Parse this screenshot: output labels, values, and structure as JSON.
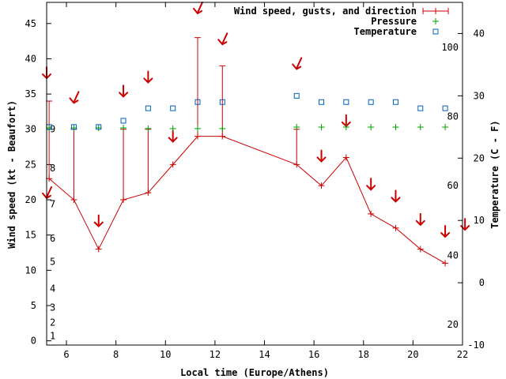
{
  "chart_data": {
    "type": "line",
    "xlabel": "Local time (Europe/Athens)",
    "ylabel": "Wind speed (kt - Beaufort)",
    "y2label": "Temperature (C - F)",
    "xlim": [
      5.2,
      22
    ],
    "ylim": [
      -0.6,
      48
    ],
    "y2lim": [
      -10,
      45
    ],
    "x_ticks": [
      6,
      8,
      10,
      12,
      14,
      16,
      18,
      20,
      22
    ],
    "y_ticks": [
      0,
      5,
      10,
      15,
      20,
      25,
      30,
      35,
      40,
      45
    ],
    "y2_ticks": [
      -10,
      0,
      10,
      20,
      30,
      40
    ],
    "beaufort_ticks": [
      {
        "label": "1",
        "y": 0.7
      },
      {
        "label": "2",
        "y": 2.6
      },
      {
        "label": "3",
        "y": 4.7
      },
      {
        "label": "4",
        "y": 7.4
      },
      {
        "label": "5",
        "y": 11.2
      },
      {
        "label": "6",
        "y": 14.5
      },
      {
        "label": "7",
        "y": 19.4
      },
      {
        "label": "8",
        "y": 24.5
      },
      {
        "label": "9",
        "y": 30.0
      }
    ],
    "fahrenheit_ticks": [
      {
        "label": "20",
        "c": -6.7
      },
      {
        "label": "40",
        "c": 4.4
      },
      {
        "label": "60",
        "c": 15.6
      },
      {
        "label": "80",
        "c": 26.7
      },
      {
        "label": "100",
        "c": 37.8
      }
    ],
    "series": [
      {
        "name": "Wind speed, gusts, and direction",
        "color": "#cc0000",
        "x": [
          5.3,
          6.3,
          7.3,
          8.3,
          9.3,
          10.3,
          11.3,
          12.3,
          15.3,
          16.3,
          17.3,
          18.3,
          19.3,
          20.3,
          21.3
        ],
        "speed": [
          23,
          20,
          13,
          20,
          21,
          25,
          29,
          29,
          25,
          22,
          26,
          18,
          16,
          13,
          11
        ],
        "gust": [
          34,
          30,
          null,
          30,
          30,
          null,
          43,
          39,
          30,
          null,
          null,
          null,
          null,
          null,
          null
        ],
        "arrows": [
          {
            "x": 5.2,
            "y": 20.8,
            "dir": "ne"
          },
          {
            "x": 5.2,
            "y": 37.8,
            "dir": "s"
          },
          {
            "x": 6.3,
            "y": 34.3,
            "dir": "ne"
          },
          {
            "x": 7.3,
            "y": 16.8,
            "dir": "s"
          },
          {
            "x": 8.3,
            "y": 35.2,
            "dir": "s"
          },
          {
            "x": 9.3,
            "y": 37.2,
            "dir": "s"
          },
          {
            "x": 10.3,
            "y": 28.8,
            "dir": "s"
          },
          {
            "x": 11.3,
            "y": 47.0,
            "dir": "ne"
          },
          {
            "x": 12.3,
            "y": 42.6,
            "dir": "ne"
          },
          {
            "x": 15.3,
            "y": 39.1,
            "dir": "ne"
          },
          {
            "x": 16.3,
            "y": 26.0,
            "dir": "s"
          },
          {
            "x": 17.3,
            "y": 31.0,
            "dir": "s"
          },
          {
            "x": 18.3,
            "y": 22.0,
            "dir": "s"
          },
          {
            "x": 19.3,
            "y": 20.3,
            "dir": "s"
          },
          {
            "x": 20.3,
            "y": 17.0,
            "dir": "s"
          },
          {
            "x": 21.3,
            "y": 15.3,
            "dir": "s"
          },
          {
            "x": 22.1,
            "y": 16.3,
            "dir": "s"
          }
        ]
      },
      {
        "name": "Pressure",
        "color": "#00a000",
        "x": [
          5.3,
          6.3,
          7.3,
          8.3,
          9.3,
          10.3,
          11.3,
          12.3,
          15.3,
          16.3,
          17.3,
          18.3,
          19.3,
          20.3,
          21.3
        ],
        "values": [
          30.2,
          30.2,
          30.2,
          30.2,
          30.1,
          30.1,
          30.1,
          30.1,
          30.3,
          30.3,
          30.3,
          30.3,
          30.3,
          30.3,
          30.3
        ]
      },
      {
        "name": "Temperature",
        "color": "#0060c0",
        "x": [
          5.3,
          6.3,
          7.3,
          8.3,
          9.3,
          10.3,
          11.3,
          12.3,
          15.3,
          16.3,
          17.3,
          18.3,
          19.3,
          20.3,
          21.3
        ],
        "values": [
          25,
          25,
          25,
          26,
          28,
          28,
          29,
          29,
          30,
          29,
          29,
          29,
          29,
          28,
          28
        ]
      }
    ]
  }
}
